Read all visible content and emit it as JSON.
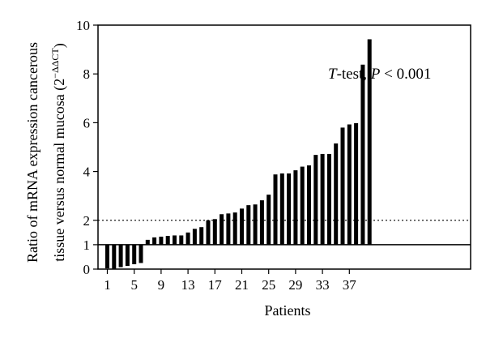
{
  "chart_data": {
    "type": "bar",
    "xlabel": "Patients",
    "ylabel_line1": "Ratio of mRNA expression cancerous",
    "ylabel_line2_prefix": "tissue versus normal mucosa (2",
    "ylabel_superscript": "−ΔΔCT",
    "ylabel_line2_suffix": ")",
    "ylim": [
      0,
      10
    ],
    "y_ticks": [
      "0",
      "1",
      "2",
      "4",
      "6",
      "8",
      "10"
    ],
    "y_tick_values": [
      0,
      1,
      2,
      4,
      6,
      8,
      10
    ],
    "x_ticks": [
      "1",
      "5",
      "9",
      "13",
      "17",
      "21",
      "25",
      "29",
      "33",
      "37"
    ],
    "x_tick_indices": [
      1,
      5,
      9,
      13,
      17,
      21,
      25,
      29,
      33,
      37
    ],
    "baseline": 1,
    "reference_line": 2,
    "annotation": {
      "italic_part": "T",
      "middle": "-test, ",
      "italic_p": "P",
      "rest": " < 0.001"
    },
    "x": [
      1,
      2,
      3,
      4,
      5,
      6,
      7,
      8,
      9,
      10,
      11,
      12,
      13,
      14,
      15,
      16,
      17,
      18,
      19,
      20,
      21,
      22,
      23,
      24,
      25,
      26,
      27,
      28,
      29,
      30,
      31,
      32,
      33,
      34,
      35,
      36,
      37,
      38,
      39,
      40
    ],
    "values": [
      0.03,
      0.02,
      0.08,
      0.13,
      0.2,
      0.25,
      1.2,
      1.3,
      1.33,
      1.36,
      1.38,
      1.38,
      1.5,
      1.65,
      1.72,
      2.0,
      2.05,
      2.25,
      2.28,
      2.32,
      2.48,
      2.62,
      2.65,
      2.82,
      3.05,
      3.88,
      3.92,
      3.92,
      4.05,
      4.2,
      4.25,
      4.68,
      4.72,
      4.72,
      5.15,
      5.8,
      5.93,
      5.98,
      8.38,
      9.42
    ]
  }
}
